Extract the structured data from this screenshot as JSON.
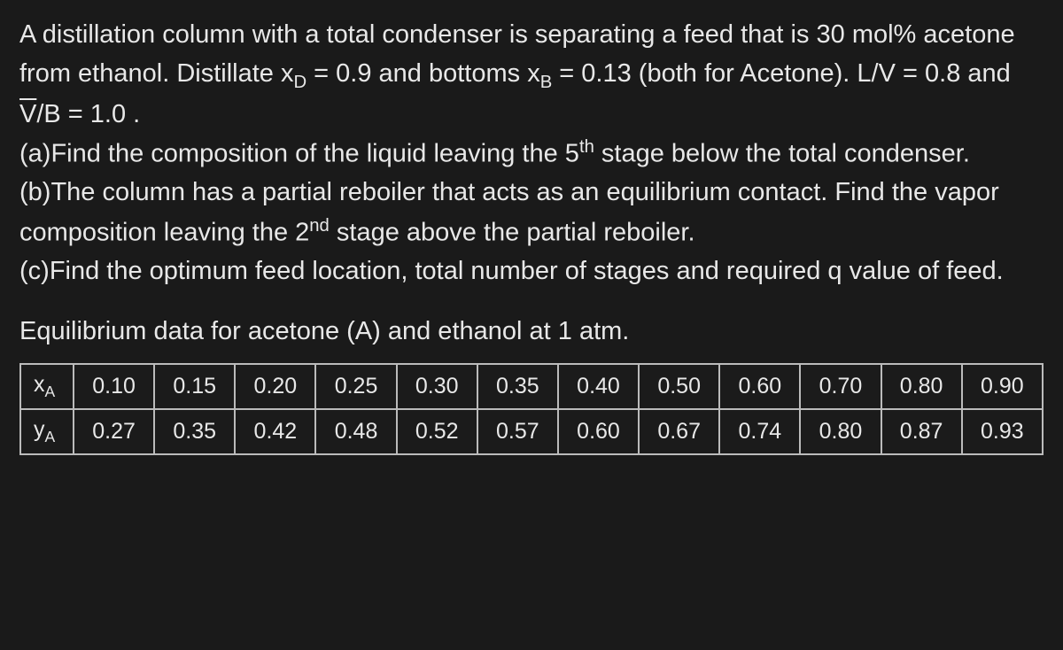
{
  "background_color": "#1a1a1a",
  "text_color": "#e8e8e8",
  "problem": {
    "intro_part1": "A distillation column with a total condenser is separating a feed that is 30 mol% acetone from ethanol. Distillate x",
    "sub_D": "D",
    "eq1": " = 0.9 and bottoms x",
    "sub_B": "B",
    "eq2": " = 0.13 (both for Acetone). L/V = 0.8 and ",
    "vbar": "V",
    "eq3": "/B = 1.0 .",
    "part_a_prefix": "(a)Find the composition of the liquid leaving the 5",
    "sup_th": "th",
    "part_a_suffix": " stage below the total condenser.",
    "part_b_prefix": "(b)The column has a partial reboiler that acts as an equilibrium contact. Find the vapor composition leaving the 2",
    "sup_nd": "nd",
    "part_b_suffix": " stage above the partial reboiler.",
    "part_c": "(c)Find the optimum feed location, total number of stages and required q value of feed."
  },
  "equilibrium": {
    "title": "Equilibrium data for acetone (A) and ethanol at 1 atm.",
    "row1_label_base": "x",
    "row1_label_sub": "A",
    "row2_label_base": "y",
    "row2_label_sub": "A",
    "xA": [
      "0.10",
      "0.15",
      "0.20",
      "0.25",
      "0.30",
      "0.35",
      "0.40",
      "0.50",
      "0.60",
      "0.70",
      "0.80",
      "0.90"
    ],
    "yA": [
      "0.27",
      "0.35",
      "0.42",
      "0.48",
      "0.52",
      "0.57",
      "0.60",
      "0.67",
      "0.74",
      "0.80",
      "0.87",
      "0.93"
    ]
  },
  "table_style": {
    "border_color": "#bbb",
    "cell_bg": "rgba(30,30,30,0.4)",
    "font_size": 25
  }
}
